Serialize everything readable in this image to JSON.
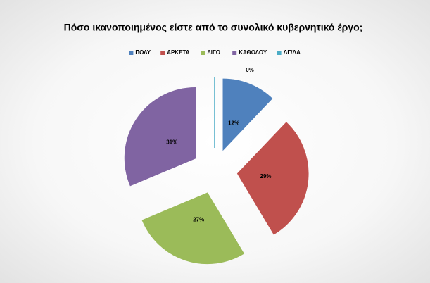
{
  "chart_data": {
    "type": "pie",
    "title": "Πόσο ικανοποιημένος είστε από το συνολικό κυβερνητικό έργο;",
    "categories": [
      "ΠΟΛΥ",
      "ΑΡΚΕΤΑ",
      "ΛΙΓΟ",
      "ΚΑΘΟΛΟΥ",
      "ΔΓ/ΔΑ"
    ],
    "values": [
      12,
      29,
      27,
      31,
      0
    ],
    "value_labels": [
      "12%",
      "29%",
      "27%",
      "31%",
      "0%"
    ],
    "colors": [
      "#4f81bd",
      "#c0504d",
      "#9bbb59",
      "#8064a2",
      "#4bacc6"
    ],
    "legend": "top"
  }
}
